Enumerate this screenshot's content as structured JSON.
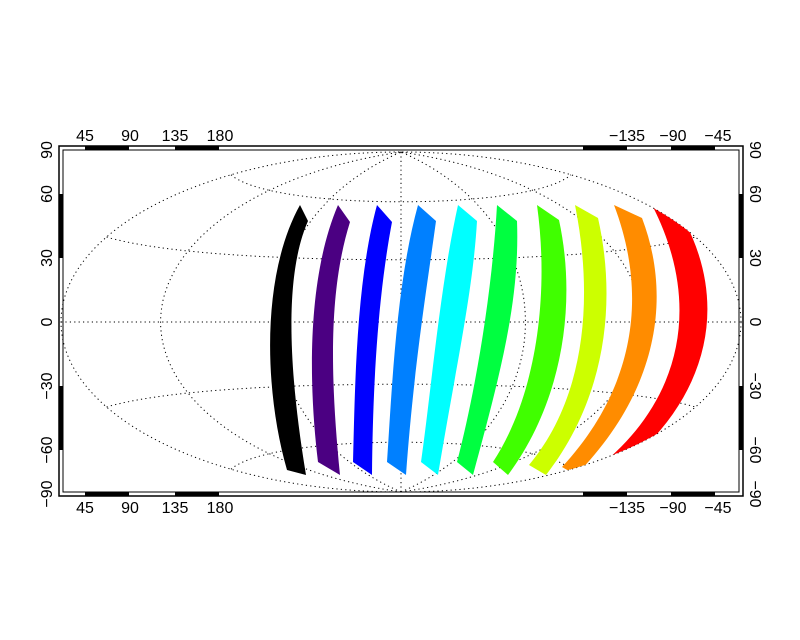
{
  "map": {
    "projection": "Hammer-Aitoff",
    "grid": true,
    "frame_ticks": {
      "top_left_lon_labels": [
        "45",
        "90",
        "135",
        "180"
      ],
      "top_right_lon_labels": [
        "−135",
        "−90",
        "−45"
      ],
      "bottom_left_lon_labels": [
        "45",
        "90",
        "135",
        "180"
      ],
      "bottom_right_lon_labels": [
        "−135",
        "−90",
        "−45"
      ],
      "left_lat_labels": [
        "90",
        "60",
        "30",
        "0",
        "−30",
        "−60",
        "−90"
      ],
      "right_lat_labels": [
        "90",
        "60",
        "30",
        "0",
        "−30",
        "−60",
        "−90"
      ]
    },
    "bands": [
      {
        "color": "#000000"
      },
      {
        "color": "#4b0082"
      },
      {
        "color": "#0000ff"
      },
      {
        "color": "#0080ff"
      },
      {
        "color": "#00ffff"
      },
      {
        "color": "#00ff40"
      },
      {
        "color": "#40ff00"
      },
      {
        "color": "#ccff00"
      },
      {
        "color": "#ff8c00"
      },
      {
        "color": "#ff0000"
      }
    ]
  }
}
